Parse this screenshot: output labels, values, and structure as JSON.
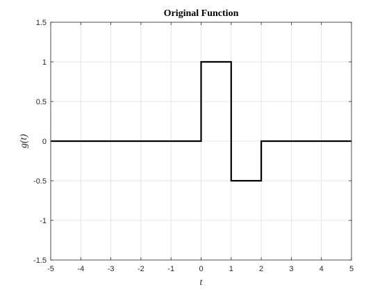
{
  "chart_data": {
    "type": "line",
    "title": "Original Function",
    "xlabel": "t",
    "ylabel": "g(t)",
    "xlim": [
      -5,
      5
    ],
    "ylim": [
      -1.5,
      1.5
    ],
    "x_ticks": [
      -5,
      -4,
      -3,
      -2,
      -1,
      0,
      1,
      2,
      3,
      4,
      5
    ],
    "y_ticks": [
      -1.5,
      -1,
      -0.5,
      0,
      0.5,
      1,
      1.5
    ],
    "x_tick_labels": [
      "-5",
      "-4",
      "-3",
      "-2",
      "-1",
      "0",
      "1",
      "2",
      "3",
      "4",
      "5"
    ],
    "y_tick_labels": [
      "-1.5",
      "-1",
      "-0.5",
      "0",
      "0.5",
      "1",
      "1.5"
    ],
    "grid": true,
    "series": [
      {
        "color": "#000000",
        "x": [
          -5,
          0,
          0,
          1,
          1,
          2,
          2,
          5
        ],
        "y": [
          0,
          0,
          1,
          1,
          -0.5,
          -0.5,
          0,
          0
        ]
      }
    ]
  }
}
